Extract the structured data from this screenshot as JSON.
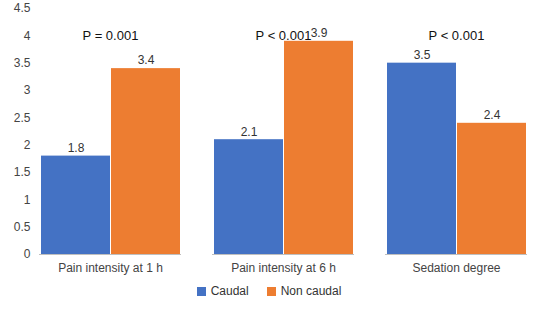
{
  "chart_data": {
    "type": "bar",
    "categories": [
      "Pain intensity at 1 h",
      "Pain intensity at 6 h",
      "Sedation degree"
    ],
    "series": [
      {
        "name": "Caudal",
        "color": "#4472c4",
        "values": [
          1.8,
          2.1,
          3.5
        ]
      },
      {
        "name": "Non caudal",
        "color": "#ed7d31",
        "values": [
          3.4,
          3.9,
          2.4
        ]
      }
    ],
    "annotations": [
      "P = 0.001",
      "P < 0.001",
      "P < 0.001"
    ],
    "ylim": [
      0,
      4.5
    ],
    "yticks": [
      0,
      0.5,
      1,
      1.5,
      2,
      2.5,
      3,
      3.5,
      4,
      4.5
    ],
    "grid": false,
    "data_labels": true,
    "legend": "bottom"
  }
}
